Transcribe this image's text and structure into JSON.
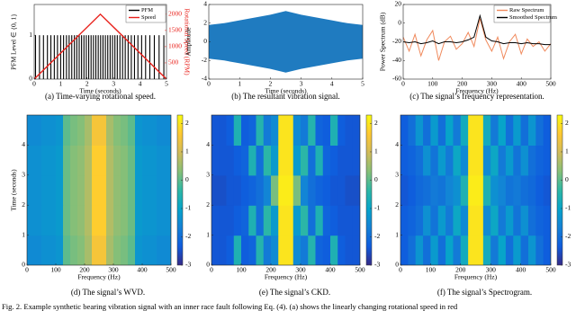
{
  "chart_data": [
    {
      "type": "line",
      "caption": "(a) Time-varying rotational speed.",
      "xlabel": "Time (seconds)",
      "ylabel": "PFM Level ∈ {0, 1}",
      "y2label": "Rotational Speed (RPM)",
      "xlim": [
        0,
        5
      ],
      "xticks": [
        0,
        1,
        2,
        3,
        4,
        5
      ],
      "ylim": [
        0,
        1.7
      ],
      "yticks": [
        0,
        1
      ],
      "y2lim": [
        0,
        2300
      ],
      "y2ticks": [
        500,
        1000,
        1500,
        2000
      ],
      "legend": "upper right",
      "series": [
        {
          "name": "PFM",
          "color": "#000000",
          "style": "stem",
          "x": [
            0.05,
            0.2,
            0.35,
            0.5,
            0.63,
            0.76,
            0.88,
            1.0,
            1.11,
            1.22,
            1.32,
            1.42,
            1.52,
            1.61,
            1.7,
            1.79,
            1.88,
            1.97,
            2.06,
            2.15,
            2.24,
            2.33,
            2.42,
            2.51,
            2.6,
            2.69,
            2.78,
            2.87,
            2.96,
            3.05,
            3.14,
            3.24,
            3.34,
            3.44,
            3.55,
            3.67,
            3.79,
            3.92,
            4.06,
            4.21,
            4.37,
            4.54,
            4.72,
            4.9
          ],
          "values": [
            1,
            1,
            1,
            1,
            1,
            1,
            1,
            1,
            1,
            1,
            1,
            1,
            1,
            1,
            1,
            1,
            1,
            1,
            1,
            1,
            1,
            1,
            1,
            1,
            1,
            1,
            1,
            1,
            1,
            1,
            1,
            1,
            1,
            1,
            1,
            1,
            1,
            1,
            1,
            1,
            1,
            1,
            1,
            1
          ]
        },
        {
          "name": "Speed",
          "color": "#e8201a",
          "axis": "y2",
          "x": [
            0,
            2.5,
            5
          ],
          "values": [
            0,
            2000,
            0
          ]
        }
      ]
    },
    {
      "type": "area",
      "caption": "(b) The resultant vibration signal.",
      "xlabel": "Time (seconds)",
      "ylabel": "Amplitude",
      "xlim": [
        0,
        5
      ],
      "xticks": [
        0,
        1,
        2,
        3,
        4,
        5
      ],
      "ylim": [
        -4,
        4
      ],
      "yticks": [
        -4,
        -2,
        0,
        2,
        4
      ],
      "color": "#1f7bc0",
      "x": [
        0,
        0.5,
        1,
        1.5,
        2,
        2.5,
        3,
        3.5,
        4,
        4.5,
        5
      ],
      "upper": [
        1.8,
        2.0,
        2.3,
        2.6,
        2.9,
        3.3,
        2.9,
        2.6,
        2.3,
        2.0,
        1.8
      ],
      "lower": [
        -1.8,
        -2.0,
        -2.3,
        -2.6,
        -2.9,
        -3.3,
        -2.9,
        -2.6,
        -2.3,
        -2.0,
        -1.8
      ]
    },
    {
      "type": "line",
      "caption": "(c) The signal’s frequency representation.",
      "xlabel": "Frequency (Hz)",
      "ylabel": "Power Spectrum (dB)",
      "xlim": [
        0,
        500
      ],
      "xticks": [
        0,
        100,
        200,
        300,
        400,
        500
      ],
      "ylim": [
        -60,
        20
      ],
      "yticks": [
        -60,
        -40,
        -20,
        0,
        20
      ],
      "legend": "upper right",
      "x": [
        0,
        20,
        40,
        60,
        80,
        100,
        120,
        140,
        160,
        180,
        200,
        220,
        240,
        260,
        280,
        300,
        320,
        340,
        360,
        380,
        400,
        420,
        440,
        460,
        480,
        500
      ],
      "series": [
        {
          "name": "Raw Spectrum",
          "color": "#f08a5d",
          "values": [
            -15,
            -30,
            -12,
            -35,
            -18,
            -8,
            -40,
            -20,
            -14,
            -28,
            -22,
            -10,
            -25,
            5,
            -18,
            -30,
            -15,
            -38,
            -20,
            -12,
            -33,
            -17,
            -25,
            -20,
            -30,
            -22
          ]
        },
        {
          "name": "Smoothed Spectrum",
          "color": "#000000",
          "values": [
            -20,
            -21,
            -20,
            -22,
            -21,
            -19,
            -22,
            -20,
            -20,
            -21,
            -20,
            -18,
            -15,
            8,
            -15,
            -19,
            -20,
            -22,
            -21,
            -21,
            -22,
            -21,
            -22,
            -22,
            -23,
            -23
          ]
        }
      ]
    },
    {
      "type": "heatmap",
      "caption": "(d) The signal’s WVD.",
      "xlabel": "Frequency (Hz)",
      "ylabel": "Time (seconds)",
      "xlim": [
        0,
        500
      ],
      "xticks": [
        0,
        100,
        200,
        300,
        400,
        500
      ],
      "ylim": [
        0,
        5
      ],
      "yticks": [
        0,
        1,
        2,
        3,
        4
      ],
      "clim": [
        -3,
        2.3
      ],
      "cticks": [
        -3,
        -2,
        -1,
        0,
        1,
        2
      ],
      "colormap": [
        "#352a87",
        "#0f5cdd",
        "#1481d6",
        "#06a4ca",
        "#2eb7a4",
        "#87bf77",
        "#d1bb59",
        "#fec832",
        "#f9fb0e"
      ],
      "z": [
        [
          -1.5,
          -1.5,
          -1.4,
          -1.4,
          -1.3,
          0.0,
          0.2,
          0.3,
          0.6,
          1.5,
          1.5,
          0.6,
          0.3,
          0.2,
          0.0,
          -1.3,
          -1.4,
          -1.4,
          -1.5,
          -1.5
        ],
        [
          -1.4,
          -1.4,
          -1.3,
          -1.3,
          -1.2,
          0.1,
          0.3,
          0.4,
          0.7,
          1.7,
          1.7,
          0.7,
          0.4,
          0.3,
          0.1,
          -1.2,
          -1.3,
          -1.3,
          -1.4,
          -1.4
        ],
        [
          -1.4,
          -1.4,
          -1.3,
          -1.3,
          -1.2,
          0.1,
          0.3,
          0.4,
          0.7,
          1.7,
          1.7,
          0.7,
          0.4,
          0.3,
          0.1,
          -1.2,
          -1.3,
          -1.3,
          -1.4,
          -1.4
        ],
        [
          -1.4,
          -1.4,
          -1.3,
          -1.3,
          -1.2,
          0.1,
          0.3,
          0.4,
          0.7,
          1.7,
          1.7,
          0.7,
          0.4,
          0.3,
          0.1,
          -1.2,
          -1.3,
          -1.3,
          -1.4,
          -1.4
        ],
        [
          -1.5,
          -1.5,
          -1.4,
          -1.4,
          -1.3,
          0.0,
          0.2,
          0.3,
          0.6,
          1.5,
          1.5,
          0.6,
          0.3,
          0.2,
          0.0,
          -1.3,
          -1.4,
          -1.4,
          -1.5,
          -1.5
        ]
      ]
    },
    {
      "type": "heatmap",
      "caption": "(e) The signal’s CKD.",
      "xlabel": "Frequency (Hz)",
      "xlim": [
        0,
        500
      ],
      "xticks": [
        0,
        100,
        200,
        300,
        400,
        500
      ],
      "ylim": [
        0,
        5
      ],
      "yticks": [
        0,
        1,
        2,
        3,
        4
      ],
      "clim": [
        -3,
        2.3
      ],
      "cticks": [
        -3,
        -2,
        -1,
        0,
        1,
        2
      ],
      "colormap": [
        "#352a87",
        "#0f5cdd",
        "#1481d6",
        "#06a4ca",
        "#2eb7a4",
        "#87bf77",
        "#d1bb59",
        "#fec832",
        "#f9fb0e"
      ],
      "z": [
        [
          -2.4,
          -2.4,
          -2.3,
          -0.6,
          -2.3,
          -2.2,
          -0.5,
          -1.8,
          -1.5,
          2.0,
          2.0,
          -1.5,
          -1.8,
          -0.5,
          -2.2,
          -2.3,
          -0.6,
          -2.3,
          -2.4,
          -2.4
        ],
        [
          -2.4,
          -2.4,
          -2.4,
          -2.3,
          -2.2,
          -0.6,
          -2.0,
          -0.4,
          -1.2,
          2.0,
          2.0,
          -1.2,
          -0.4,
          -2.0,
          -0.6,
          -2.2,
          -2.3,
          -2.4,
          -2.4,
          -2.4
        ],
        [
          -2.5,
          -2.5,
          -2.4,
          -2.4,
          -2.3,
          -2.2,
          -2.0,
          -1.6,
          0.2,
          2.1,
          2.1,
          0.2,
          -1.6,
          -2.0,
          -2.2,
          -2.3,
          -2.4,
          -2.4,
          -2.5,
          -2.5
        ],
        [
          -2.4,
          -2.4,
          -2.4,
          -2.3,
          -2.2,
          -0.6,
          -2.0,
          -0.4,
          -1.2,
          2.0,
          2.0,
          -1.2,
          -0.4,
          -2.0,
          -0.6,
          -2.2,
          -2.3,
          -2.4,
          -2.4,
          -2.4
        ],
        [
          -2.4,
          -2.4,
          -2.3,
          -0.6,
          -2.3,
          -2.2,
          -0.5,
          -1.8,
          -1.5,
          2.0,
          2.0,
          -1.5,
          -1.8,
          -0.5,
          -2.2,
          -2.3,
          -0.6,
          -2.3,
          -2.4,
          -2.4
        ]
      ]
    },
    {
      "type": "heatmap",
      "caption": "(f) The signal’s Spectrogram.",
      "xlabel": "Frequency (Hz)",
      "xlim": [
        0,
        500
      ],
      "xticks": [
        0,
        100,
        200,
        300,
        400,
        500
      ],
      "ylim": [
        0,
        5
      ],
      "yticks": [
        0,
        1,
        2,
        3,
        4
      ],
      "clim": [
        -3,
        2.3
      ],
      "cticks": [
        -3,
        -2,
        -1,
        0,
        1,
        2
      ],
      "colormap": [
        "#352a87",
        "#0f5cdd",
        "#1481d6",
        "#06a4ca",
        "#2eb7a4",
        "#87bf77",
        "#d1bb59",
        "#fec832",
        "#f9fb0e"
      ],
      "z": [
        [
          -2.3,
          -2.0,
          -1.3,
          -2.0,
          -1.2,
          -2.0,
          -1.0,
          -1.8,
          -0.8,
          2.0,
          2.0,
          -0.8,
          -1.8,
          -1.0,
          -2.0,
          -1.2,
          -2.0,
          -1.3,
          -2.0,
          -2.3
        ],
        [
          -2.3,
          -2.2,
          -2.0,
          -1.4,
          -1.9,
          -1.2,
          -1.8,
          -0.9,
          -1.5,
          2.0,
          2.0,
          -1.5,
          -0.9,
          -1.8,
          -1.2,
          -1.9,
          -1.4,
          -2.0,
          -2.2,
          -2.3
        ],
        [
          -2.4,
          -2.3,
          -2.1,
          -2.0,
          -1.8,
          -1.9,
          -1.6,
          -1.4,
          -0.6,
          2.1,
          2.1,
          -0.6,
          -1.4,
          -1.6,
          -1.9,
          -1.8,
          -2.0,
          -2.1,
          -2.3,
          -2.4
        ],
        [
          -2.3,
          -2.2,
          -2.0,
          -1.4,
          -1.9,
          -1.2,
          -1.8,
          -0.9,
          -1.5,
          2.0,
          2.0,
          -1.5,
          -0.9,
          -1.8,
          -1.2,
          -1.9,
          -1.4,
          -2.0,
          -2.2,
          -2.3
        ],
        [
          -2.3,
          -2.0,
          -1.3,
          -2.0,
          -1.2,
          -2.0,
          -1.0,
          -1.8,
          -0.8,
          2.0,
          2.0,
          -0.8,
          -1.8,
          -1.0,
          -2.0,
          -1.2,
          -2.0,
          -1.3,
          -2.0,
          -2.3
        ]
      ]
    }
  ],
  "figure_caption": "Fig. 2.  Example synthetic bearing vibration signal with an inner race fault following Eq. (4). (a) shows the linearly changing rotational speed in red"
}
